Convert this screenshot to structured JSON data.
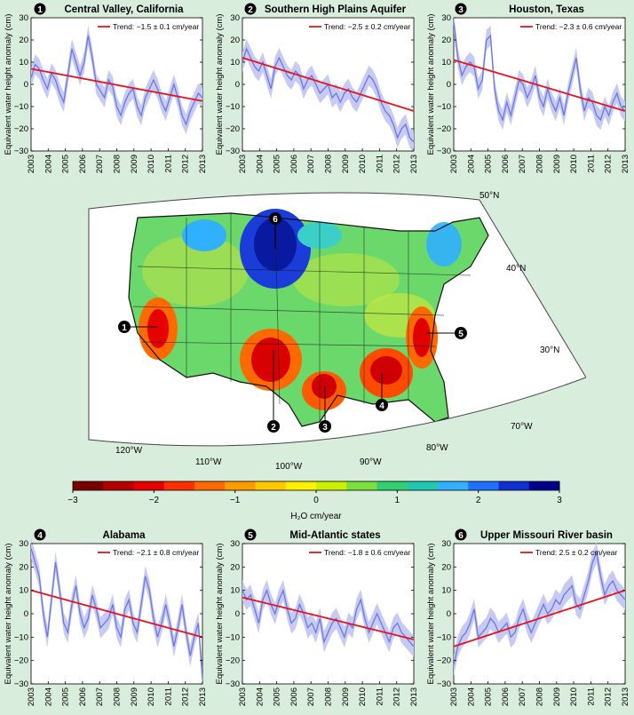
{
  "chart_data": [
    {
      "id": "p1",
      "type": "line",
      "number": "1",
      "title": "Central Valley, California",
      "trend_label": "Trend: −1.5 ± 0.1 cm/year",
      "ylabel": "Equivalent water height anomaly (cm)",
      "ylim": [
        -30,
        30
      ],
      "yticks": [
        -30,
        -20,
        -10,
        0,
        10,
        20,
        30
      ],
      "xticks": [
        "2003",
        "2004",
        "2005",
        "2006",
        "2007",
        "2008",
        "2009",
        "2010",
        "2011",
        "2012",
        "2013"
      ],
      "trend": [
        7,
        -7.5
      ],
      "series": [
        3,
        9,
        7,
        2,
        -2,
        5,
        2,
        -4,
        -8,
        4,
        16,
        10,
        4,
        10,
        22,
        12,
        0,
        -3,
        -6,
        2,
        -1,
        -10,
        -14,
        -8,
        -4,
        -2,
        -10,
        -14,
        -6,
        -2,
        2,
        -2,
        -8,
        -12,
        -6,
        0,
        -6,
        -14,
        -18,
        -12,
        -8,
        -4,
        -6
      ]
    },
    {
      "id": "p2",
      "type": "line",
      "number": "2",
      "title": "Southern High Plains Aquifer",
      "trend_label": "Trend: −2.5 ± 0.2 cm/year",
      "ylabel": "Equivalent water height anomaly (cm)",
      "ylim": [
        -30,
        30
      ],
      "yticks": [
        -30,
        -20,
        -10,
        0,
        10,
        20,
        30
      ],
      "xticks": [
        "2003",
        "2004",
        "2005",
        "2006",
        "2007",
        "2008",
        "2009",
        "2010",
        "2011",
        "2012",
        "2013"
      ],
      "trend": [
        12,
        -12
      ],
      "series": [
        10,
        16,
        12,
        8,
        6,
        10,
        4,
        -2,
        8,
        12,
        8,
        4,
        2,
        6,
        4,
        -2,
        2,
        4,
        0,
        -4,
        -2,
        0,
        -6,
        -4,
        -8,
        -4,
        -2,
        -6,
        -8,
        -4,
        0,
        4,
        2,
        -2,
        -8,
        -12,
        -14,
        -18,
        -24,
        -20,
        -18,
        -24,
        -26
      ]
    },
    {
      "id": "p3",
      "type": "line",
      "number": "3",
      "title": "Houston, Texas",
      "trend_label": "Trend: −2.3 ± 0.6 cm/year",
      "ylabel": "Equivalent water height anomaly (cm)",
      "ylim": [
        -30,
        30
      ],
      "yticks": [
        -30,
        -20,
        -10,
        0,
        10,
        20,
        30
      ],
      "xticks": [
        "2003",
        "2004",
        "2005",
        "2006",
        "2007",
        "2008",
        "2009",
        "2010",
        "2011",
        "2012",
        "2013"
      ],
      "trend": [
        11,
        -12
      ],
      "series": [
        28,
        12,
        4,
        8,
        10,
        8,
        -2,
        2,
        20,
        22,
        -2,
        -12,
        -16,
        -8,
        -14,
        -6,
        2,
        0,
        -6,
        -2,
        4,
        -6,
        -10,
        -2,
        -8,
        -12,
        -6,
        -14,
        -4,
        4,
        12,
        -2,
        -12,
        -6,
        -8,
        -14,
        -16,
        -10,
        -14,
        -8,
        -4,
        -10,
        -12
      ]
    },
    {
      "id": "p4",
      "type": "line",
      "number": "4",
      "title": "Alabama",
      "trend_label": "Trend: −2.1 ± 0.8 cm/year",
      "ylabel": "Equivalent water height anomaly (cm)",
      "ylim": [
        -30,
        30
      ],
      "yticks": [
        -30,
        -20,
        -10,
        0,
        10,
        20,
        30
      ],
      "xticks": [
        "2003",
        "2004",
        "2005",
        "2006",
        "2007",
        "2008",
        "2009",
        "2010",
        "2011",
        "2012",
        "2013"
      ],
      "trend": [
        10,
        -10
      ],
      "series": [
        28,
        22,
        16,
        0,
        -10,
        6,
        22,
        10,
        -4,
        -8,
        4,
        12,
        0,
        -6,
        -2,
        8,
        2,
        -6,
        -4,
        -2,
        4,
        -6,
        -10,
        2,
        6,
        -4,
        -8,
        4,
        16,
        10,
        -2,
        -10,
        -4,
        4,
        -4,
        -14,
        -6,
        4,
        -8,
        -18,
        -10,
        -4,
        -28
      ]
    },
    {
      "id": "p5",
      "type": "line",
      "number": "5",
      "title": "Mid-Atlantic states",
      "trend_label": "Trend: −1.8 ± 0.6 cm/year",
      "ylabel": "Equivalent water height anomaly (cm)",
      "ylim": [
        -30,
        30
      ],
      "yticks": [
        -30,
        -20,
        -10,
        0,
        10,
        20,
        30
      ],
      "xticks": [
        "2003",
        "2004",
        "2005",
        "2006",
        "2007",
        "2008",
        "2009",
        "2010",
        "2011",
        "2012",
        "2013"
      ],
      "trend": [
        7,
        -11
      ],
      "series": [
        10,
        6,
        8,
        2,
        -4,
        6,
        10,
        4,
        0,
        6,
        10,
        2,
        -4,
        -2,
        4,
        0,
        -6,
        -4,
        -8,
        -2,
        -12,
        -8,
        -4,
        -2,
        -6,
        -10,
        -4,
        -6,
        2,
        6,
        -2,
        -8,
        -4,
        0,
        -4,
        -8,
        -12,
        -6,
        -4,
        -8,
        -10,
        -12,
        -14
      ]
    },
    {
      "id": "p6",
      "type": "line",
      "number": "6",
      "title": "Upper Missouri River basin",
      "trend_label": "Trend: 2.5 ± 0.2 cm/year",
      "ylabel": "Equivalent water height anomaly (cm)",
      "ylim": [
        -30,
        30
      ],
      "yticks": [
        -30,
        -20,
        -10,
        0,
        10,
        20,
        30
      ],
      "xticks": [
        "2003",
        "2004",
        "2005",
        "2006",
        "2007",
        "2008",
        "2009",
        "2010",
        "2011",
        "2012",
        "2013"
      ],
      "trend": [
        -14,
        10
      ],
      "series": [
        -22,
        -14,
        -10,
        -8,
        -4,
        2,
        -10,
        -8,
        -6,
        -2,
        -4,
        -8,
        -6,
        -4,
        -10,
        -8,
        -2,
        2,
        -4,
        -8,
        -4,
        0,
        4,
        0,
        2,
        6,
        4,
        8,
        10,
        12,
        4,
        2,
        8,
        14,
        22,
        26,
        16,
        8,
        12,
        14,
        10,
        8,
        6
      ]
    }
  ],
  "map": {
    "lat_labels": [
      "50°N",
      "40°N",
      "30°N"
    ],
    "lon_labels": [
      "120°W",
      "110°W",
      "100°W",
      "90°W",
      "80°W",
      "70°W"
    ],
    "markers": [
      "1",
      "2",
      "3",
      "4",
      "5",
      "6"
    ]
  },
  "colorbar": {
    "type": "colorbar",
    "ticks": [
      "−3",
      "−2",
      "−1",
      "0",
      "1",
      "2",
      "3"
    ],
    "label": "H₂O cm/year",
    "colors": [
      "#7a0000",
      "#b40000",
      "#e60000",
      "#ff3000",
      "#ff6a00",
      "#ff9a00",
      "#ffc800",
      "#fff000",
      "#c8f000",
      "#7ae040",
      "#30d070",
      "#20c8b0",
      "#30b0ff",
      "#2070ff",
      "#1030d0",
      "#00008a"
    ]
  },
  "colors": {
    "line": "#6a78e0",
    "band": "#c7cbf4",
    "trend": "#e8131a",
    "badge": "#000000"
  }
}
